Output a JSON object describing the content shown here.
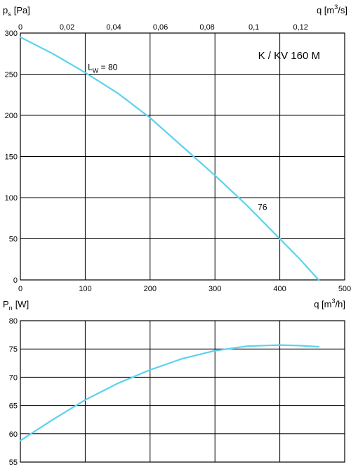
{
  "colors": {
    "curve": "#5bd2ee",
    "grid": "#000000",
    "frame": "#000000",
    "background": "#ffffff"
  },
  "chart_data": [
    {
      "type": "line",
      "title": "K / KV 160 M",
      "ylabel": {
        "main": "p",
        "sub": "s",
        "unit": "[Pa]"
      },
      "xlabel_top": {
        "main": "q [m",
        "sup": "3",
        "tail": "/s]"
      },
      "xlabel_bottom": {
        "main": "q [m",
        "sup": "3",
        "tail": "/h]"
      },
      "xlim": [
        0,
        500
      ],
      "ylim": [
        0,
        300
      ],
      "x_ticks": [
        "0",
        "100",
        "200",
        "300",
        "400",
        "500"
      ],
      "y_ticks": [
        "0",
        "50",
        "100",
        "150",
        "200",
        "250",
        "300"
      ],
      "top_x_ticks": [
        "0",
        "0,02",
        "0,04",
        "0,06",
        "0,08",
        "0,1",
        "0,12"
      ],
      "grid": true,
      "series": [
        {
          "x": [
            0,
            50,
            100,
            150,
            200,
            250,
            300,
            350,
            400,
            430,
            460
          ],
          "y": [
            295,
            275,
            252,
            227,
            197,
            162,
            127,
            90,
            50,
            26,
            0
          ]
        }
      ],
      "annotations": [
        {
          "main": "L",
          "sub": "W",
          "tail": " = 80",
          "x": 104,
          "y": 255
        },
        {
          "main": "76",
          "sub": "",
          "tail": "",
          "x": 366,
          "y": 85
        }
      ]
    },
    {
      "type": "line",
      "ylabel": {
        "main": "P",
        "sub": "n",
        "unit": "[W]"
      },
      "xlim": [
        0,
        500
      ],
      "ylim": [
        55,
        80
      ],
      "y_ticks": [
        "55",
        "60",
        "65",
        "70",
        "75",
        "80"
      ],
      "grid": true,
      "series": [
        {
          "x": [
            0,
            50,
            100,
            150,
            200,
            250,
            300,
            350,
            400,
            430,
            460
          ],
          "y": [
            58.8,
            62.5,
            66.0,
            68.9,
            71.3,
            73.3,
            74.7,
            75.5,
            75.7,
            75.6,
            75.4
          ]
        }
      ]
    }
  ]
}
